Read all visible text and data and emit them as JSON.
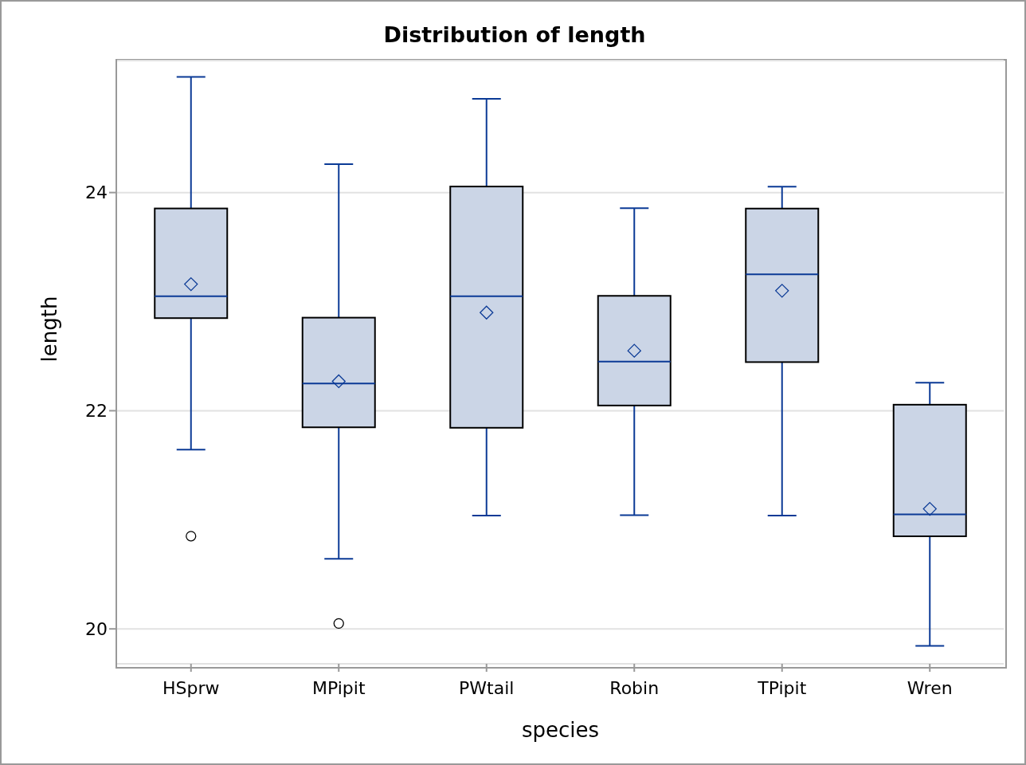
{
  "chart_data": {
    "type": "box",
    "title": "Distribution of length",
    "xlabel": "species",
    "ylabel": "length",
    "categories": [
      "HSprw",
      "MPipit",
      "PWtail",
      "Robin",
      "TPipit",
      "Wren"
    ],
    "color": "#cbd5e6",
    "boxes": [
      {
        "low": 21.65,
        "q1": 22.85,
        "median": 23.05,
        "q3": 23.85,
        "high": 25.05,
        "mean": 23.16,
        "outliers": [
          20.85
        ]
      },
      {
        "low": 20.65,
        "q1": 21.85,
        "median": 22.25,
        "q3": 22.85,
        "high": 24.25,
        "mean": 22.27,
        "outliers": [
          20.05
        ]
      },
      {
        "low": 21.05,
        "q1": 21.85,
        "median": 23.05,
        "q3": 24.05,
        "high": 24.85,
        "mean": 22.9
      },
      {
        "low": 21.05,
        "q1": 22.05,
        "median": 22.45,
        "q3": 23.05,
        "high": 23.85,
        "mean": 22.55
      },
      {
        "low": 21.05,
        "q1": 22.45,
        "median": 23.25,
        "q3": 23.85,
        "high": 24.05,
        "mean": 23.1
      },
      {
        "low": 19.85,
        "q1": 20.85,
        "median": 21.05,
        "q3": 22.05,
        "high": 22.25,
        "mean": 21.1
      }
    ],
    "ylim": [
      19.68,
      25.21
    ],
    "yticks": [
      20,
      22,
      24
    ],
    "grid": "y"
  }
}
